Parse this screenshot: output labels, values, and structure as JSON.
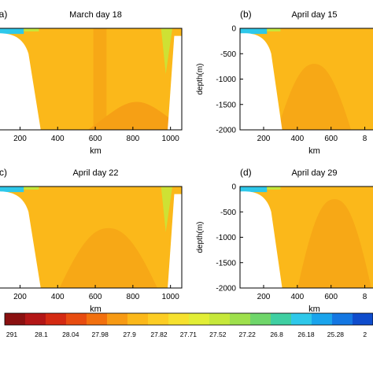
{
  "chart_data": [
    {
      "type": "heatmap",
      "panel_label": "(a)",
      "title": "March day 18",
      "xlabel": "km",
      "ylabel": "",
      "x_ticks": [
        "200",
        "400",
        "600",
        "800",
        "1000"
      ],
      "y_ticks": [],
      "xlim": [
        60,
        1060
      ],
      "ylim": [
        -2000,
        0
      ],
      "regions": [
        {
          "role": "field",
          "color": "#fbb81a"
        },
        {
          "role": "band",
          "from_km": 590,
          "to_km": 660,
          "color": "#f7a816"
        },
        {
          "role": "deep-mound",
          "peak_km": 820,
          "peak_depth": -1450,
          "color": "#f6a015"
        },
        {
          "role": "surface",
          "color": "#2ec8ea"
        },
        {
          "role": "edge",
          "color": "#c6e83a"
        }
      ]
    },
    {
      "type": "heatmap",
      "panel_label": "(b)",
      "title": "April day 15",
      "xlabel": "km",
      "ylabel": "depth(m)",
      "x_ticks": [
        "200",
        "400",
        "600",
        "8"
      ],
      "y_ticks": [
        "0",
        "-500",
        "-1000",
        "-1500",
        "-2000"
      ],
      "xlim": [
        60,
        900
      ],
      "ylim": [
        -2000,
        0
      ],
      "regions": [
        {
          "role": "field",
          "color": "#fbb81a"
        },
        {
          "role": "deep-mound",
          "peak_km": 500,
          "peak_depth": -700,
          "color": "#f7a816"
        },
        {
          "role": "surface",
          "color": "#2ec8ea"
        }
      ]
    },
    {
      "type": "heatmap",
      "panel_label": "(c)",
      "title": "April day 22",
      "xlabel": "km",
      "ylabel": "",
      "x_ticks": [
        "200",
        "400",
        "600",
        "800",
        "1000"
      ],
      "y_ticks": [],
      "xlim": [
        60,
        1060
      ],
      "ylim": [
        -2000,
        0
      ],
      "regions": [
        {
          "role": "field",
          "color": "#fbb81a"
        },
        {
          "role": "deep-mound",
          "peak_km": 670,
          "peak_depth": -820,
          "color": "#f7a816"
        },
        {
          "role": "surface",
          "color": "#2ec8ea"
        },
        {
          "role": "edge",
          "color": "#c6e83a"
        }
      ]
    },
    {
      "type": "heatmap",
      "panel_label": "(d)",
      "title": "April day 29",
      "xlabel": "km",
      "ylabel": "depth(m)",
      "x_ticks": [
        "200",
        "400",
        "600",
        "8"
      ],
      "y_ticks": [
        "0",
        "-500",
        "-1000",
        "-1500",
        "-2000"
      ],
      "xlim": [
        60,
        900
      ],
      "ylim": [
        -2000,
        0
      ],
      "regions": [
        {
          "role": "field",
          "color": "#fbb81a"
        },
        {
          "role": "deep-mound",
          "peak_km": 620,
          "peak_depth": -250,
          "color": "#f7a816"
        },
        {
          "role": "surface",
          "color": "#2ec8ea"
        }
      ]
    }
  ],
  "colorbar": {
    "labels": [
      "291",
      "28.1",
      "28.04",
      "27.98",
      "27.9",
      "27.82",
      "27.71",
      "27.52",
      "27.22",
      "26.8",
      "26.18",
      "25.28",
      "2"
    ],
    "colors": [
      "#8a1010",
      "#b31616",
      "#d42a12",
      "#e84c10",
      "#f2700e",
      "#f79a14",
      "#fbb81a",
      "#fccd24",
      "#f6e12e",
      "#e2ee36",
      "#c6e83a",
      "#9ee04c",
      "#6fd66a",
      "#3fcfa2",
      "#2ec8ea",
      "#1aa4ec",
      "#1477e2",
      "#0f4ccc"
    ]
  }
}
